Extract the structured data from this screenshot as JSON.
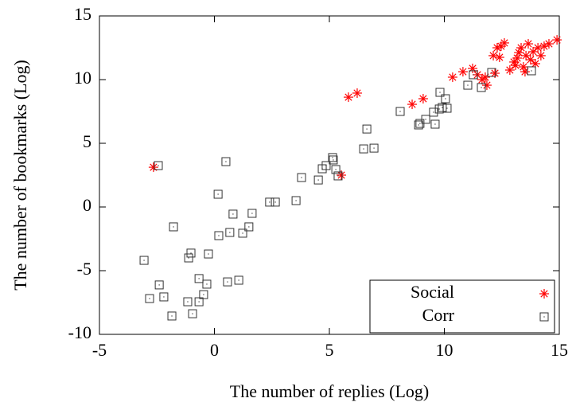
{
  "chart_data": {
    "type": "scatter",
    "xlabel": "The number of replies (Log)",
    "ylabel": "The number of bookmarks (Log)",
    "xlim": [
      -5,
      15
    ],
    "ylim": [
      -10,
      15
    ],
    "xticks": [
      -5,
      0,
      5,
      10,
      15
    ],
    "yticks": [
      -10,
      -5,
      0,
      5,
      10,
      15
    ],
    "legend": "lower right",
    "series": [
      {
        "name": "Social",
        "color": "#ff0000",
        "marker": "asterisk",
        "x": [
          -2.65,
          5.52,
          5.83,
          6.21,
          8.6,
          9.08,
          10.36,
          10.81,
          11.23,
          11.44,
          11.64,
          11.78,
          11.85,
          12.13,
          12.2,
          12.3,
          12.47,
          12.61,
          12.4,
          12.85,
          13.03,
          13.17,
          13.24,
          13.34,
          13.44,
          13.55,
          13.65,
          13.75,
          13.86,
          13.96,
          14.07,
          14.2,
          14.34,
          14.55,
          14.9,
          13.51,
          13.1
        ],
        "values": [
          3.12,
          2.5,
          8.62,
          8.94,
          8.06,
          8.5,
          10.19,
          10.62,
          10.88,
          10.38,
          10.0,
          10.19,
          9.56,
          11.88,
          10.5,
          12.5,
          12.62,
          12.88,
          11.75,
          10.75,
          11.38,
          11.69,
          12.12,
          12.5,
          11.0,
          11.88,
          12.81,
          11.56,
          12.19,
          11.25,
          12.5,
          11.88,
          12.62,
          12.81,
          13.12,
          10.62,
          11.12
        ]
      },
      {
        "name": "Corr",
        "color": "#333333",
        "marker": "square",
        "x": [
          -2.44,
          0.5,
          0.16,
          -1.78,
          0.81,
          1.64,
          1.5,
          0.67,
          1.23,
          0.19,
          -1.02,
          -1.12,
          -0.26,
          -3.06,
          -0.67,
          -0.33,
          0.57,
          1.06,
          -2.4,
          -0.47,
          -2.2,
          -2.82,
          -1.16,
          -0.67,
          -0.95,
          -1.85,
          2.4,
          2.65,
          3.55,
          3.79,
          4.52,
          4.69,
          4.86,
          5.14,
          5.17,
          5.28,
          5.38,
          6.49,
          6.63,
          6.94,
          8.08,
          8.88,
          8.94,
          9.19,
          9.53,
          9.6,
          9.78,
          9.81,
          9.91,
          10.05,
          10.12,
          11.02,
          11.26,
          11.61,
          12.06,
          13.79
        ],
        "values": [
          3.25,
          3.56,
          1.0,
          -1.56,
          -0.56,
          -0.5,
          -1.56,
          -2.0,
          -2.06,
          -2.25,
          -3.62,
          -4.0,
          -3.69,
          -4.19,
          -5.62,
          -6.06,
          -5.88,
          -5.75,
          -6.12,
          -6.88,
          -7.06,
          -7.19,
          -7.44,
          -7.44,
          -8.38,
          -8.56,
          0.38,
          0.38,
          0.5,
          2.31,
          2.12,
          3.0,
          3.25,
          3.88,
          3.69,
          2.94,
          2.44,
          4.56,
          6.12,
          4.62,
          7.5,
          6.44,
          6.56,
          6.88,
          7.44,
          6.5,
          7.69,
          9.0,
          7.81,
          8.5,
          7.75,
          9.56,
          10.38,
          9.38,
          10.56,
          10.69
        ]
      }
    ]
  }
}
